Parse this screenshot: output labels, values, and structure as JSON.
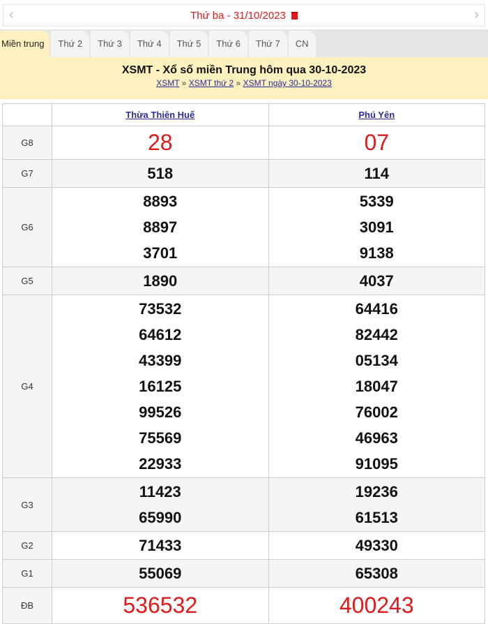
{
  "datebar": {
    "label": "Thứ ba -  31/10/2023",
    "prev": "‹",
    "next": "›"
  },
  "tabs": [
    "Miền trung",
    "Thứ 2",
    "Thứ 3",
    "Thứ 4",
    "Thứ 5",
    "Thứ 6",
    "Thứ 7",
    "CN"
  ],
  "header": {
    "title": "XSMT - Xổ số miền Trung hôm qua 30-10-2023",
    "breadcrumb": [
      "XSMT",
      "XSMT thứ 2",
      "XSMT ngày 30-10-2023"
    ],
    "sep": "»"
  },
  "table": {
    "provinces": [
      "Thừa Thiên Huế",
      "Phú Yên"
    ],
    "rows": [
      {
        "label": "G8",
        "c1": [
          "28"
        ],
        "c2": [
          "07"
        ]
      },
      {
        "label": "G7",
        "c1": [
          "518"
        ],
        "c2": [
          "114"
        ]
      },
      {
        "label": "G6",
        "c1": [
          "8893",
          "8897",
          "3701"
        ],
        "c2": [
          "5339",
          "3091",
          "9138"
        ]
      },
      {
        "label": "G5",
        "c1": [
          "1890"
        ],
        "c2": [
          "4037"
        ]
      },
      {
        "label": "G4",
        "c1": [
          "73532",
          "64612",
          "43399",
          "16125",
          "99526",
          "75569",
          "22933"
        ],
        "c2": [
          "64416",
          "82442",
          "05134",
          "18047",
          "76002",
          "46963",
          "91095"
        ]
      },
      {
        "label": "G3",
        "c1": [
          "11423",
          "65990"
        ],
        "c2": [
          "19236",
          "61513"
        ]
      },
      {
        "label": "G2",
        "c1": [
          "71433"
        ],
        "c2": [
          "49330"
        ]
      },
      {
        "label": "G1",
        "c1": [
          "55069"
        ],
        "c2": [
          "65308"
        ]
      },
      {
        "label": "ĐB",
        "c1": [
          "536532"
        ],
        "c2": [
          "400243"
        ]
      }
    ]
  },
  "colors": {
    "accent": "#e0191a",
    "header_bg": "#fdf1c0",
    "link": "#2a2a9a"
  }
}
